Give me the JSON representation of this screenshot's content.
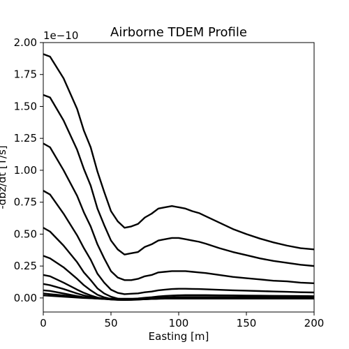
{
  "chart_data": {
    "type": "line",
    "title": "Airborne TDEM Profile",
    "xlabel": "Easting [m]",
    "ylabel": "-dbz/dt [T/s]",
    "y_offset_text": "1e−10",
    "xlim": [
      0,
      200
    ],
    "ylim": [
      -0.11,
      2.0
    ],
    "xticks": [
      0,
      50,
      100,
      150,
      200
    ],
    "xtick_labels": [
      "0",
      "50",
      "100",
      "150",
      "200"
    ],
    "yticks": [
      0.0,
      0.25,
      0.5,
      0.75,
      1.0,
      1.25,
      1.5,
      1.75,
      2.0
    ],
    "ytick_labels": [
      "0.00",
      "0.25",
      "0.50",
      "0.75",
      "1.00",
      "1.25",
      "1.50",
      "1.75",
      "2.00"
    ],
    "grid": false,
    "line_color": "#000000",
    "x": [
      0,
      5,
      15,
      25,
      30,
      35,
      40,
      45,
      50,
      55,
      60,
      65,
      70,
      75,
      80,
      85,
      90,
      95,
      100,
      105,
      110,
      115,
      120,
      130,
      140,
      150,
      160,
      170,
      180,
      190,
      200
    ],
    "series": [
      {
        "values": [
          1.91,
          1.89,
          1.72,
          1.48,
          1.31,
          1.18,
          0.99,
          0.83,
          0.68,
          0.6,
          0.55,
          0.56,
          0.58,
          0.63,
          0.66,
          0.7,
          0.71,
          0.72,
          0.71,
          0.7,
          0.68,
          0.665,
          0.64,
          0.59,
          0.54,
          0.5,
          0.465,
          0.435,
          0.41,
          0.39,
          0.38
        ]
      },
      {
        "values": [
          1.59,
          1.57,
          1.39,
          1.16,
          1.01,
          0.88,
          0.7,
          0.57,
          0.45,
          0.38,
          0.34,
          0.35,
          0.36,
          0.4,
          0.42,
          0.45,
          0.46,
          0.47,
          0.47,
          0.46,
          0.45,
          0.44,
          0.425,
          0.39,
          0.36,
          0.335,
          0.31,
          0.29,
          0.275,
          0.26,
          0.25
        ]
      },
      {
        "values": [
          1.21,
          1.18,
          1.0,
          0.8,
          0.67,
          0.56,
          0.42,
          0.31,
          0.21,
          0.16,
          0.14,
          0.14,
          0.15,
          0.17,
          0.18,
          0.2,
          0.205,
          0.21,
          0.21,
          0.21,
          0.205,
          0.2,
          0.195,
          0.18,
          0.165,
          0.155,
          0.145,
          0.135,
          0.13,
          0.12,
          0.115
        ]
      },
      {
        "values": [
          0.84,
          0.81,
          0.66,
          0.49,
          0.39,
          0.3,
          0.19,
          0.12,
          0.065,
          0.04,
          0.03,
          0.033,
          0.036,
          0.045,
          0.05,
          0.06,
          0.065,
          0.07,
          0.072,
          0.072,
          0.071,
          0.07,
          0.068,
          0.064,
          0.06,
          0.057,
          0.054,
          0.051,
          0.048,
          0.045,
          0.043
        ]
      },
      {
        "values": [
          0.55,
          0.52,
          0.41,
          0.28,
          0.2,
          0.14,
          0.075,
          0.035,
          0.01,
          -0.005,
          -0.01,
          -0.008,
          -0.004,
          0.002,
          0.006,
          0.012,
          0.016,
          0.019,
          0.021,
          0.022,
          0.022,
          0.022,
          0.022,
          0.021,
          0.02,
          0.019,
          0.018,
          0.017,
          0.016,
          0.015,
          0.014
        ]
      },
      {
        "values": [
          0.33,
          0.31,
          0.24,
          0.15,
          0.1,
          0.06,
          0.025,
          0.005,
          -0.008,
          -0.013,
          -0.015,
          -0.013,
          -0.01,
          -0.006,
          -0.003,
          0.001,
          0.004,
          0.006,
          0.007,
          0.008,
          0.008,
          0.008,
          0.008,
          0.008,
          0.007,
          0.007,
          0.007,
          0.006,
          0.006,
          0.006,
          0.006
        ]
      },
      {
        "values": [
          0.18,
          0.17,
          0.12,
          0.065,
          0.04,
          0.02,
          0.003,
          -0.006,
          -0.012,
          -0.015,
          -0.016,
          -0.015,
          -0.013,
          -0.01,
          -0.007,
          -0.005,
          -0.003,
          -0.002,
          -0.001,
          0.0,
          0.0,
          0.0,
          0.0,
          0.0,
          0.0,
          0.0,
          0.0,
          0.0,
          0.0,
          0.0,
          0.0
        ]
      },
      {
        "values": [
          0.11,
          0.1,
          0.07,
          0.035,
          0.02,
          0.008,
          -0.002,
          -0.008,
          -0.012,
          -0.014,
          -0.015,
          -0.014,
          -0.012,
          -0.01,
          -0.008,
          -0.006,
          -0.004,
          -0.003,
          -0.002,
          -0.002,
          -0.001,
          -0.001,
          -0.001,
          -0.001,
          -0.001,
          -0.001,
          -0.001,
          -0.001,
          -0.001,
          -0.001,
          -0.001
        ]
      },
      {
        "values": [
          0.06,
          0.055,
          0.035,
          0.015,
          0.006,
          0.0,
          -0.005,
          -0.008,
          -0.01,
          -0.011,
          -0.012,
          -0.011,
          -0.01,
          -0.009,
          -0.008,
          -0.006,
          -0.005,
          -0.004,
          -0.004,
          -0.003,
          -0.003,
          -0.003,
          -0.003,
          -0.003,
          -0.003,
          -0.003,
          -0.003,
          -0.003,
          -0.003,
          -0.003,
          -0.003
        ]
      },
      {
        "values": [
          0.035,
          0.03,
          0.02,
          0.008,
          0.002,
          -0.002,
          -0.005,
          -0.007,
          -0.008,
          -0.009,
          -0.009,
          -0.009,
          -0.008,
          -0.008,
          -0.007,
          -0.006,
          -0.005,
          -0.005,
          -0.004,
          -0.004,
          -0.004,
          -0.004,
          -0.004,
          -0.004,
          -0.004,
          -0.004,
          -0.004,
          -0.004,
          -0.004,
          -0.004,
          -0.004
        ]
      },
      {
        "values": [
          0.02,
          0.017,
          0.01,
          0.003,
          0.0,
          -0.002,
          -0.004,
          -0.005,
          -0.006,
          -0.006,
          -0.006,
          -0.006,
          -0.006,
          -0.006,
          -0.005,
          -0.005,
          -0.005,
          -0.005,
          -0.005,
          -0.005,
          -0.005,
          -0.005,
          -0.005,
          -0.005,
          -0.005,
          -0.005,
          -0.005,
          -0.005,
          -0.005,
          -0.005,
          -0.005
        ]
      }
    ]
  }
}
